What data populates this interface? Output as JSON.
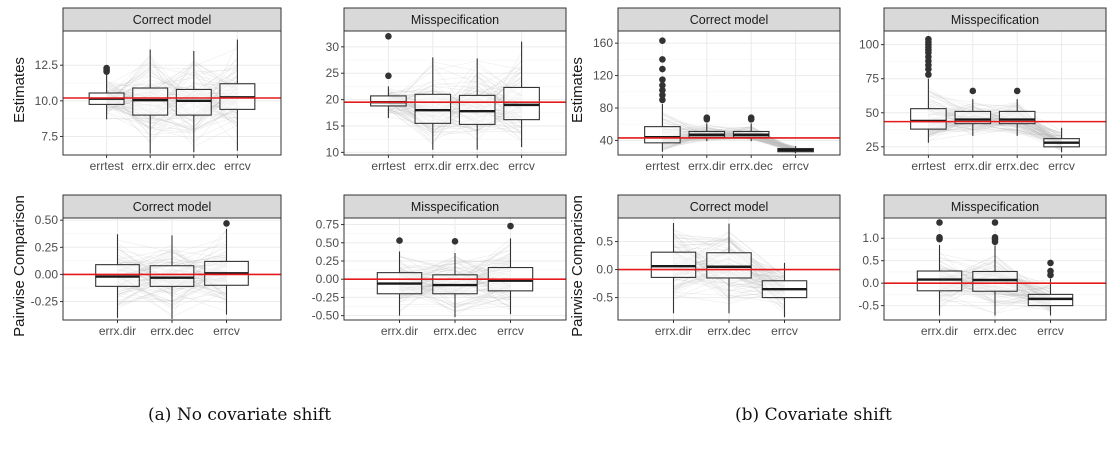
{
  "colors": {
    "strip": "#d9d9d9",
    "border": "#333333",
    "grid": "#ebebeb",
    "gridMinor": "#f5f5f5",
    "refLine": "#e41a1c",
    "spaghetti": "#bdbdbd",
    "outlier": "#333333"
  },
  "y_titles": {
    "row1": "Estimates",
    "row2": "Pairwise Comparison"
  },
  "captions": [
    {
      "label": "(a)",
      "text": "No covariate shift"
    },
    {
      "label": "(b)",
      "text": "Covariate shift"
    }
  ],
  "chart_data": [
    {
      "panel": "a1",
      "type": "box",
      "strip": "Correct model",
      "show_ytitle": true,
      "categories": [
        "errtest",
        "errx.dir",
        "errx.dec",
        "errcv"
      ],
      "ylim": [
        6.2,
        14.9
      ],
      "yticks": [
        "7.5",
        "10.0",
        "12.5"
      ],
      "ref": 10.2,
      "boxes": [
        {
          "q1": 9.75,
          "med": 10.15,
          "q3": 10.55,
          "lo": 8.7,
          "hi": 11.9,
          "outliers": [
            12.05,
            12.2,
            12.3
          ]
        },
        {
          "q1": 9.0,
          "med": 10.05,
          "q3": 10.9,
          "lo": 6.3,
          "hi": 13.6,
          "outliers": []
        },
        {
          "q1": 9.0,
          "med": 10.0,
          "q3": 10.8,
          "lo": 6.4,
          "hi": 13.5,
          "outliers": []
        },
        {
          "q1": 9.4,
          "med": 10.25,
          "q3": 11.2,
          "lo": 6.5,
          "hi": 14.3,
          "outliers": []
        }
      ]
    },
    {
      "panel": "a2",
      "type": "box",
      "strip": "Misspecification",
      "show_ytitle": false,
      "categories": [
        "errtest",
        "errx.dir",
        "errx.dec",
        "errcv"
      ],
      "ylim": [
        9.5,
        33.0
      ],
      "yticks": [
        "10",
        "15",
        "20",
        "25",
        "30"
      ],
      "ref": 19.5,
      "boxes": [
        {
          "q1": 18.8,
          "med": 19.5,
          "q3": 20.7,
          "lo": 16.5,
          "hi": 22.5,
          "outliers": [
            24.5,
            32.0
          ]
        },
        {
          "q1": 15.5,
          "med": 18.0,
          "q3": 21.0,
          "lo": 10.5,
          "hi": 28.0,
          "outliers": []
        },
        {
          "q1": 15.3,
          "med": 17.8,
          "q3": 20.8,
          "lo": 10.5,
          "hi": 27.8,
          "outliers": []
        },
        {
          "q1": 16.2,
          "med": 19.0,
          "q3": 22.3,
          "lo": 11.0,
          "hi": 31.0,
          "outliers": []
        }
      ]
    },
    {
      "panel": "a3",
      "type": "box",
      "strip": "Correct model",
      "show_ytitle": true,
      "categories": [
        "errx.dir",
        "errx.dec",
        "errcv"
      ],
      "ylim": [
        -0.42,
        0.52
      ],
      "yticks": [
        "-0.25",
        "0.00",
        "0.25",
        "0.50"
      ],
      "ref": 0.0,
      "boxes": [
        {
          "q1": -0.11,
          "med": -0.02,
          "q3": 0.09,
          "lo": -0.4,
          "hi": 0.37,
          "outliers": []
        },
        {
          "q1": -0.11,
          "med": -0.03,
          "q3": 0.08,
          "lo": -0.41,
          "hi": 0.36,
          "outliers": []
        },
        {
          "q1": -0.1,
          "med": 0.01,
          "q3": 0.12,
          "lo": -0.37,
          "hi": 0.42,
          "outliers": [
            0.47
          ]
        }
      ]
    },
    {
      "panel": "a4",
      "type": "box",
      "strip": "Misspecification",
      "show_ytitle": false,
      "categories": [
        "errx.dir",
        "errx.dec",
        "errcv"
      ],
      "ylim": [
        -0.56,
        0.84
      ],
      "yticks": [
        "-0.50",
        "-0.25",
        "0.00",
        "0.25",
        "0.50",
        "0.75"
      ],
      "ref": 0.0,
      "boxes": [
        {
          "q1": -0.2,
          "med": -0.06,
          "q3": 0.09,
          "lo": -0.5,
          "hi": 0.38,
          "outliers": [
            0.53
          ]
        },
        {
          "q1": -0.2,
          "med": -0.08,
          "q3": 0.06,
          "lo": -0.52,
          "hi": 0.36,
          "outliers": [
            0.52
          ]
        },
        {
          "q1": -0.16,
          "med": -0.02,
          "q3": 0.16,
          "lo": -0.48,
          "hi": 0.56,
          "outliers": [
            0.73
          ]
        }
      ]
    },
    {
      "panel": "b1",
      "type": "box",
      "strip": "Correct model",
      "show_ytitle": true,
      "categories": [
        "errtest",
        "errx.dir",
        "errx.dec",
        "errcv"
      ],
      "ylim": [
        22,
        175
      ],
      "yticks": [
        "40",
        "80",
        "120",
        "160"
      ],
      "ref": 43,
      "boxes": [
        {
          "q1": 37,
          "med": 44,
          "q3": 57,
          "lo": 26,
          "hi": 85,
          "outliers": [
            90,
            96,
            102,
            108,
            115,
            128,
            140,
            163
          ]
        },
        {
          "q1": 44,
          "med": 47,
          "q3": 51,
          "lo": 39,
          "hi": 61,
          "outliers": [
            66,
            68
          ]
        },
        {
          "q1": 44,
          "med": 47,
          "q3": 51,
          "lo": 39,
          "hi": 61,
          "outliers": [
            66,
            68
          ]
        },
        {
          "q1": 26,
          "med": 28,
          "q3": 30,
          "lo": 24,
          "hi": 33,
          "outliers": []
        }
      ]
    },
    {
      "panel": "b2",
      "type": "box",
      "strip": "Misspecification",
      "show_ytitle": false,
      "categories": [
        "errtest",
        "errx.dir",
        "errx.dec",
        "errcv"
      ],
      "ylim": [
        19,
        110
      ],
      "yticks": [
        "25",
        "50",
        "75",
        "100"
      ],
      "ref": 43.5,
      "boxes": [
        {
          "q1": 38,
          "med": 44,
          "q3": 53,
          "lo": 28,
          "hi": 75,
          "outliers": [
            78,
            82,
            85,
            88,
            91,
            94,
            96,
            98,
            100,
            102,
            104
          ]
        },
        {
          "q1": 42,
          "med": 45,
          "q3": 51,
          "lo": 33,
          "hi": 60,
          "outliers": [
            66
          ]
        },
        {
          "q1": 42,
          "med": 45,
          "q3": 51,
          "lo": 33,
          "hi": 60,
          "outliers": [
            66
          ]
        },
        {
          "q1": 25,
          "med": 28,
          "q3": 31,
          "lo": 21,
          "hi": 39,
          "outliers": []
        }
      ]
    },
    {
      "panel": "b3",
      "type": "box",
      "strip": "Correct model",
      "show_ytitle": true,
      "categories": [
        "errx.dir",
        "errx.dec",
        "errcv"
      ],
      "ylim": [
        -0.9,
        0.92
      ],
      "yticks": [
        "-0.5",
        "0.0",
        "0.5"
      ],
      "ref": 0.0,
      "boxes": [
        {
          "q1": -0.14,
          "med": 0.06,
          "q3": 0.31,
          "lo": -0.78,
          "hi": 0.83,
          "outliers": []
        },
        {
          "q1": -0.15,
          "med": 0.05,
          "q3": 0.3,
          "lo": -0.78,
          "hi": 0.82,
          "outliers": []
        },
        {
          "q1": -0.5,
          "med": -0.35,
          "q3": -0.2,
          "lo": -0.85,
          "hi": 0.12,
          "outliers": []
        }
      ]
    },
    {
      "panel": "b4",
      "type": "box",
      "strip": "Misspecification",
      "show_ytitle": false,
      "categories": [
        "errx.dir",
        "errx.dec",
        "errcv"
      ],
      "ylim": [
        -0.82,
        1.45
      ],
      "yticks": [
        "-0.5",
        "0.0",
        "0.5",
        "1.0"
      ],
      "ref": 0.0,
      "boxes": [
        {
          "q1": -0.17,
          "med": 0.08,
          "q3": 0.27,
          "lo": -0.72,
          "hi": 0.85,
          "outliers": [
            0.98,
            1.02,
            1.35
          ]
        },
        {
          "q1": -0.18,
          "med": 0.07,
          "q3": 0.26,
          "lo": -0.72,
          "hi": 0.84,
          "outliers": [
            0.92,
            0.97,
            1.02,
            1.35
          ]
        },
        {
          "q1": -0.5,
          "med": -0.35,
          "q3": -0.25,
          "lo": -0.72,
          "hi": 0.1,
          "outliers": [
            0.18,
            0.27,
            0.45
          ]
        }
      ]
    }
  ]
}
